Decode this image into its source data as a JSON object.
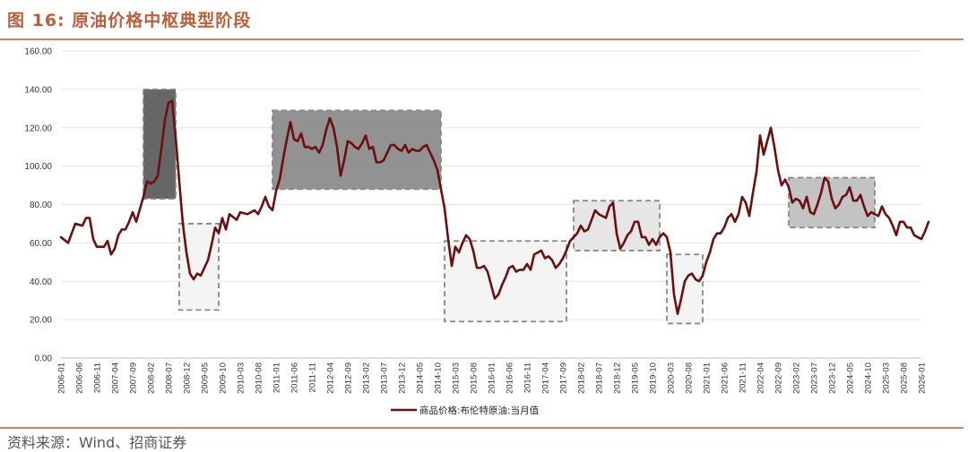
{
  "figure": {
    "title": "图 16:  原油价格中枢典型阶段",
    "source": "资料来源：Wind、招商证券"
  },
  "colors": {
    "accent": "#b9603a",
    "line": "#6b0f0f",
    "grid": "#e6e6e6"
  },
  "chart_data": {
    "type": "line",
    "title": "",
    "xlabel": "",
    "ylabel": "",
    "ylim": [
      0,
      160
    ],
    "y_ticks": [
      "0.00",
      "20.00",
      "40.00",
      "60.00",
      "80.00",
      "100.00",
      "120.00",
      "140.00",
      "160.00"
    ],
    "grid": "horizontal",
    "legend_position": "bottom-center",
    "x_ticks": [
      "2006-01",
      "2006-06",
      "2006-11",
      "2007-04",
      "2007-09",
      "2008-02",
      "2008-07",
      "2008-12",
      "2009-05",
      "2009-10",
      "2010-03",
      "2010-08",
      "2011-01",
      "2011-06",
      "2011-11",
      "2012-04",
      "2012-09",
      "2013-02",
      "2013-07",
      "2013-12",
      "2014-05",
      "2014-10",
      "2015-03",
      "2015-08",
      "2016-01",
      "2016-06",
      "2016-11",
      "2017-04",
      "2017-09",
      "2018-02",
      "2018-07",
      "2018-12",
      "2019-05",
      "2019-10",
      "2020-03",
      "2020-08",
      "2021-01",
      "2021-06",
      "2021-11",
      "2022-04",
      "2022-09",
      "2023-02",
      "2023-07",
      "2023-12",
      "2024-05",
      "2024-10",
      "2025-03",
      "2025-08",
      "2026-01"
    ],
    "series": [
      {
        "name": "商品价格:布伦特原油:当月值",
        "color": "#6b0f0f",
        "points": [
          [
            "2006-01",
            63
          ],
          [
            "2006-03",
            60
          ],
          [
            "2006-05",
            70
          ],
          [
            "2006-07",
            69
          ],
          [
            "2006-08",
            73
          ],
          [
            "2006-09",
            73
          ],
          [
            "2006-10",
            62
          ],
          [
            "2006-11",
            58
          ],
          [
            "2007-01",
            58
          ],
          [
            "2007-02",
            61
          ],
          [
            "2007-03",
            54
          ],
          [
            "2007-04",
            57
          ],
          [
            "2007-05",
            64
          ],
          [
            "2007-06",
            67
          ],
          [
            "2007-07",
            67
          ],
          [
            "2007-08",
            71
          ],
          [
            "2007-09",
            76
          ],
          [
            "2007-10",
            71
          ],
          [
            "2007-12",
            84
          ],
          [
            "2008-01",
            92
          ],
          [
            "2008-02",
            91
          ],
          [
            "2008-03",
            92
          ],
          [
            "2008-04",
            95
          ],
          [
            "2008-05",
            109
          ],
          [
            "2008-06",
            124
          ],
          [
            "2008-07",
            133
          ],
          [
            "2008-08",
            134
          ],
          [
            "2008-09",
            115
          ],
          [
            "2008-10",
            92
          ],
          [
            "2008-11",
            70
          ],
          [
            "2008-12",
            55
          ],
          [
            "2009-01",
            44
          ],
          [
            "2009-02",
            41
          ],
          [
            "2009-03",
            44
          ],
          [
            "2009-04",
            43
          ],
          [
            "2009-05",
            47
          ],
          [
            "2009-06",
            51
          ],
          [
            "2009-07",
            59
          ],
          [
            "2009-08",
            68
          ],
          [
            "2009-09",
            65
          ],
          [
            "2009-10",
            73
          ],
          [
            "2009-11",
            67
          ],
          [
            "2009-12",
            75
          ],
          [
            "2010-02",
            72
          ],
          [
            "2010-03",
            76
          ],
          [
            "2010-05",
            75
          ],
          [
            "2010-07",
            77
          ],
          [
            "2010-08",
            75
          ],
          [
            "2010-09",
            79
          ],
          [
            "2010-10",
            84
          ],
          [
            "2010-11",
            79
          ],
          [
            "2010-12",
            77
          ],
          [
            "2011-01",
            87
          ],
          [
            "2011-02",
            93
          ],
          [
            "2011-03",
            104
          ],
          [
            "2011-04",
            114
          ],
          [
            "2011-05",
            123
          ],
          [
            "2011-06",
            114
          ],
          [
            "2011-07",
            113
          ],
          [
            "2011-08",
            117
          ],
          [
            "2011-09",
            110
          ],
          [
            "2011-10",
            110
          ],
          [
            "2011-11",
            109
          ],
          [
            "2011-12",
            110
          ],
          [
            "2012-01",
            107
          ],
          [
            "2012-02",
            111
          ],
          [
            "2012-03",
            119
          ],
          [
            "2012-04",
            125
          ],
          [
            "2012-05",
            120
          ],
          [
            "2012-06",
            110
          ],
          [
            "2012-07",
            95
          ],
          [
            "2012-08",
            103
          ],
          [
            "2012-09",
            113
          ],
          [
            "2012-10",
            112
          ],
          [
            "2012-11",
            110
          ],
          [
            "2012-12",
            109
          ],
          [
            "2013-01",
            112
          ],
          [
            "2013-02",
            116
          ],
          [
            "2013-03",
            109
          ],
          [
            "2013-04",
            110
          ],
          [
            "2013-05",
            102
          ],
          [
            "2013-06",
            102
          ],
          [
            "2013-07",
            103
          ],
          [
            "2013-08",
            107
          ],
          [
            "2013-09",
            111
          ],
          [
            "2013-10",
            111
          ],
          [
            "2013-11",
            109
          ],
          [
            "2013-12",
            108
          ],
          [
            "2014-01",
            111
          ],
          [
            "2014-02",
            107
          ],
          [
            "2014-03",
            109
          ],
          [
            "2014-04",
            108
          ],
          [
            "2014-05",
            108
          ],
          [
            "2014-06",
            110
          ],
          [
            "2014-07",
            111
          ],
          [
            "2014-08",
            107
          ],
          [
            "2014-09",
            103
          ],
          [
            "2014-10",
            98
          ],
          [
            "2014-11",
            88
          ],
          [
            "2014-12",
            78
          ],
          [
            "2015-01",
            62
          ],
          [
            "2015-02",
            48
          ],
          [
            "2015-03",
            58
          ],
          [
            "2015-04",
            55
          ],
          [
            "2015-05",
            60
          ],
          [
            "2015-06",
            64
          ],
          [
            "2015-07",
            62
          ],
          [
            "2015-08",
            56
          ],
          [
            "2015-09",
            47
          ],
          [
            "2015-10",
            47
          ],
          [
            "2015-11",
            48
          ],
          [
            "2015-12",
            45
          ],
          [
            "2016-01",
            38
          ],
          [
            "2016-02",
            31
          ],
          [
            "2016-03",
            33
          ],
          [
            "2016-04",
            38
          ],
          [
            "2016-05",
            42
          ],
          [
            "2016-06",
            47
          ],
          [
            "2016-07",
            48
          ],
          [
            "2016-08",
            45
          ],
          [
            "2016-09",
            46
          ],
          [
            "2016-10",
            46
          ],
          [
            "2016-11",
            49
          ],
          [
            "2016-12",
            46
          ],
          [
            "2017-01",
            54
          ],
          [
            "2017-02",
            55
          ],
          [
            "2017-03",
            56
          ],
          [
            "2017-04",
            52
          ],
          [
            "2017-05",
            53
          ],
          [
            "2017-06",
            51
          ],
          [
            "2017-07",
            47
          ],
          [
            "2017-08",
            49
          ],
          [
            "2017-09",
            52
          ],
          [
            "2017-10",
            56
          ],
          [
            "2017-11",
            61
          ],
          [
            "2017-12",
            63
          ],
          [
            "2018-01",
            65
          ],
          [
            "2018-02",
            69
          ],
          [
            "2018-03",
            66
          ],
          [
            "2018-04",
            67
          ],
          [
            "2018-05",
            72
          ],
          [
            "2018-06",
            77
          ],
          [
            "2018-07",
            75
          ],
          [
            "2018-08",
            74
          ],
          [
            "2018-09",
            73
          ],
          [
            "2018-10",
            79
          ],
          [
            "2018-11",
            81
          ],
          [
            "2018-12",
            65
          ],
          [
            "2019-01",
            57
          ],
          [
            "2019-02",
            60
          ],
          [
            "2019-03",
            64
          ],
          [
            "2019-04",
            66
          ],
          [
            "2019-05",
            71
          ],
          [
            "2019-06",
            71
          ],
          [
            "2019-07",
            63
          ],
          [
            "2019-08",
            63
          ],
          [
            "2019-09",
            59
          ],
          [
            "2019-10",
            62
          ],
          [
            "2019-11",
            59
          ],
          [
            "2019-12",
            63
          ],
          [
            "2020-01",
            65
          ],
          [
            "2020-02",
            63
          ],
          [
            "2020-03",
            55
          ],
          [
            "2020-04",
            33
          ],
          [
            "2020-05",
            23
          ],
          [
            "2020-06",
            31
          ],
          [
            "2020-07",
            40
          ],
          [
            "2020-08",
            43
          ],
          [
            "2020-09",
            44
          ],
          [
            "2020-10",
            41
          ],
          [
            "2020-11",
            40
          ],
          [
            "2020-12",
            43
          ],
          [
            "2021-01",
            50
          ],
          [
            "2021-02",
            55
          ],
          [
            "2021-03",
            62
          ],
          [
            "2021-04",
            65
          ],
          [
            "2021-05",
            65
          ],
          [
            "2021-06",
            68
          ],
          [
            "2021-07",
            73
          ],
          [
            "2021-08",
            75
          ],
          [
            "2021-09",
            71
          ],
          [
            "2021-10",
            75
          ],
          [
            "2021-11",
            84
          ],
          [
            "2021-12",
            81
          ],
          [
            "2022-01",
            74
          ],
          [
            "2022-02",
            86
          ],
          [
            "2022-03",
            97
          ],
          [
            "2022-04",
            116
          ],
          [
            "2022-05",
            106
          ],
          [
            "2022-06",
            113
          ],
          [
            "2022-07",
            120
          ],
          [
            "2022-08",
            110
          ],
          [
            "2022-09",
            98
          ],
          [
            "2022-10",
            90
          ],
          [
            "2022-11",
            93
          ],
          [
            "2022-12",
            89
          ],
          [
            "2023-01",
            81
          ],
          [
            "2023-02",
            83
          ],
          [
            "2023-03",
            82
          ],
          [
            "2023-04",
            78
          ],
          [
            "2023-05",
            84
          ],
          [
            "2023-06",
            76
          ],
          [
            "2023-07",
            75
          ],
          [
            "2023-08",
            80
          ],
          [
            "2023-09",
            86
          ],
          [
            "2023-10",
            94
          ],
          [
            "2023-11",
            92
          ],
          [
            "2023-12",
            83
          ],
          [
            "2024-01",
            78
          ],
          [
            "2024-02",
            80
          ],
          [
            "2024-03",
            84
          ],
          [
            "2024-04",
            85
          ],
          [
            "2024-05",
            89
          ],
          [
            "2024-06",
            82
          ],
          [
            "2024-07",
            82
          ],
          [
            "2024-08",
            85
          ],
          [
            "2024-09",
            79
          ],
          [
            "2024-10",
            74
          ],
          [
            "2024-11",
            76
          ],
          [
            "2024-12",
            75
          ],
          [
            "2025-01",
            74
          ],
          [
            "2025-02",
            79
          ],
          [
            "2025-03",
            75
          ],
          [
            "2025-04",
            73
          ],
          [
            "2025-05",
            69
          ],
          [
            "2025-06",
            64
          ],
          [
            "2025-07",
            71
          ],
          [
            "2025-08",
            71
          ],
          [
            "2025-09",
            68
          ],
          [
            "2025-10",
            68
          ],
          [
            "2025-11",
            64
          ],
          [
            "2025-12",
            63
          ],
          [
            "2026-01",
            62
          ],
          [
            "2026-02",
            66
          ],
          [
            "2026-03",
            71
          ]
        ]
      }
    ],
    "highlight_regions": [
      {
        "name": "2007-2008 surge",
        "x0": "2007-12",
        "x1": "2008-09",
        "y0": 83,
        "y1": 140,
        "fill": "#555555",
        "opacity": 0.9
      },
      {
        "name": "2008-2009 trough",
        "x0": "2008-10",
        "x1": "2009-09",
        "y0": 25,
        "y1": 70,
        "fill": "#f4f4f4",
        "opacity": 1
      },
      {
        "name": "2011-2014 plateau",
        "x0": "2010-12",
        "x1": "2014-11",
        "y0": 88,
        "y1": 129,
        "fill": "#7f7f7f",
        "opacity": 0.85
      },
      {
        "name": "2015-2017 trough",
        "x0": "2014-12",
        "x1": "2017-10",
        "y0": 19,
        "y1": 61,
        "fill": "#f4f4f4",
        "opacity": 1
      },
      {
        "name": "2018-2019 band",
        "x0": "2017-12",
        "x1": "2019-12",
        "y0": 56,
        "y1": 82,
        "fill": "#e6e6e6",
        "opacity": 1
      },
      {
        "name": "2020 trough",
        "x0": "2020-02",
        "x1": "2020-12",
        "y0": 18,
        "y1": 54,
        "fill": "#f4f4f4",
        "opacity": 1
      },
      {
        "name": "2023-2024 band",
        "x0": "2022-12",
        "x1": "2024-12",
        "y0": 68,
        "y1": 94,
        "fill": "#bdbdbd",
        "opacity": 0.9
      }
    ]
  }
}
